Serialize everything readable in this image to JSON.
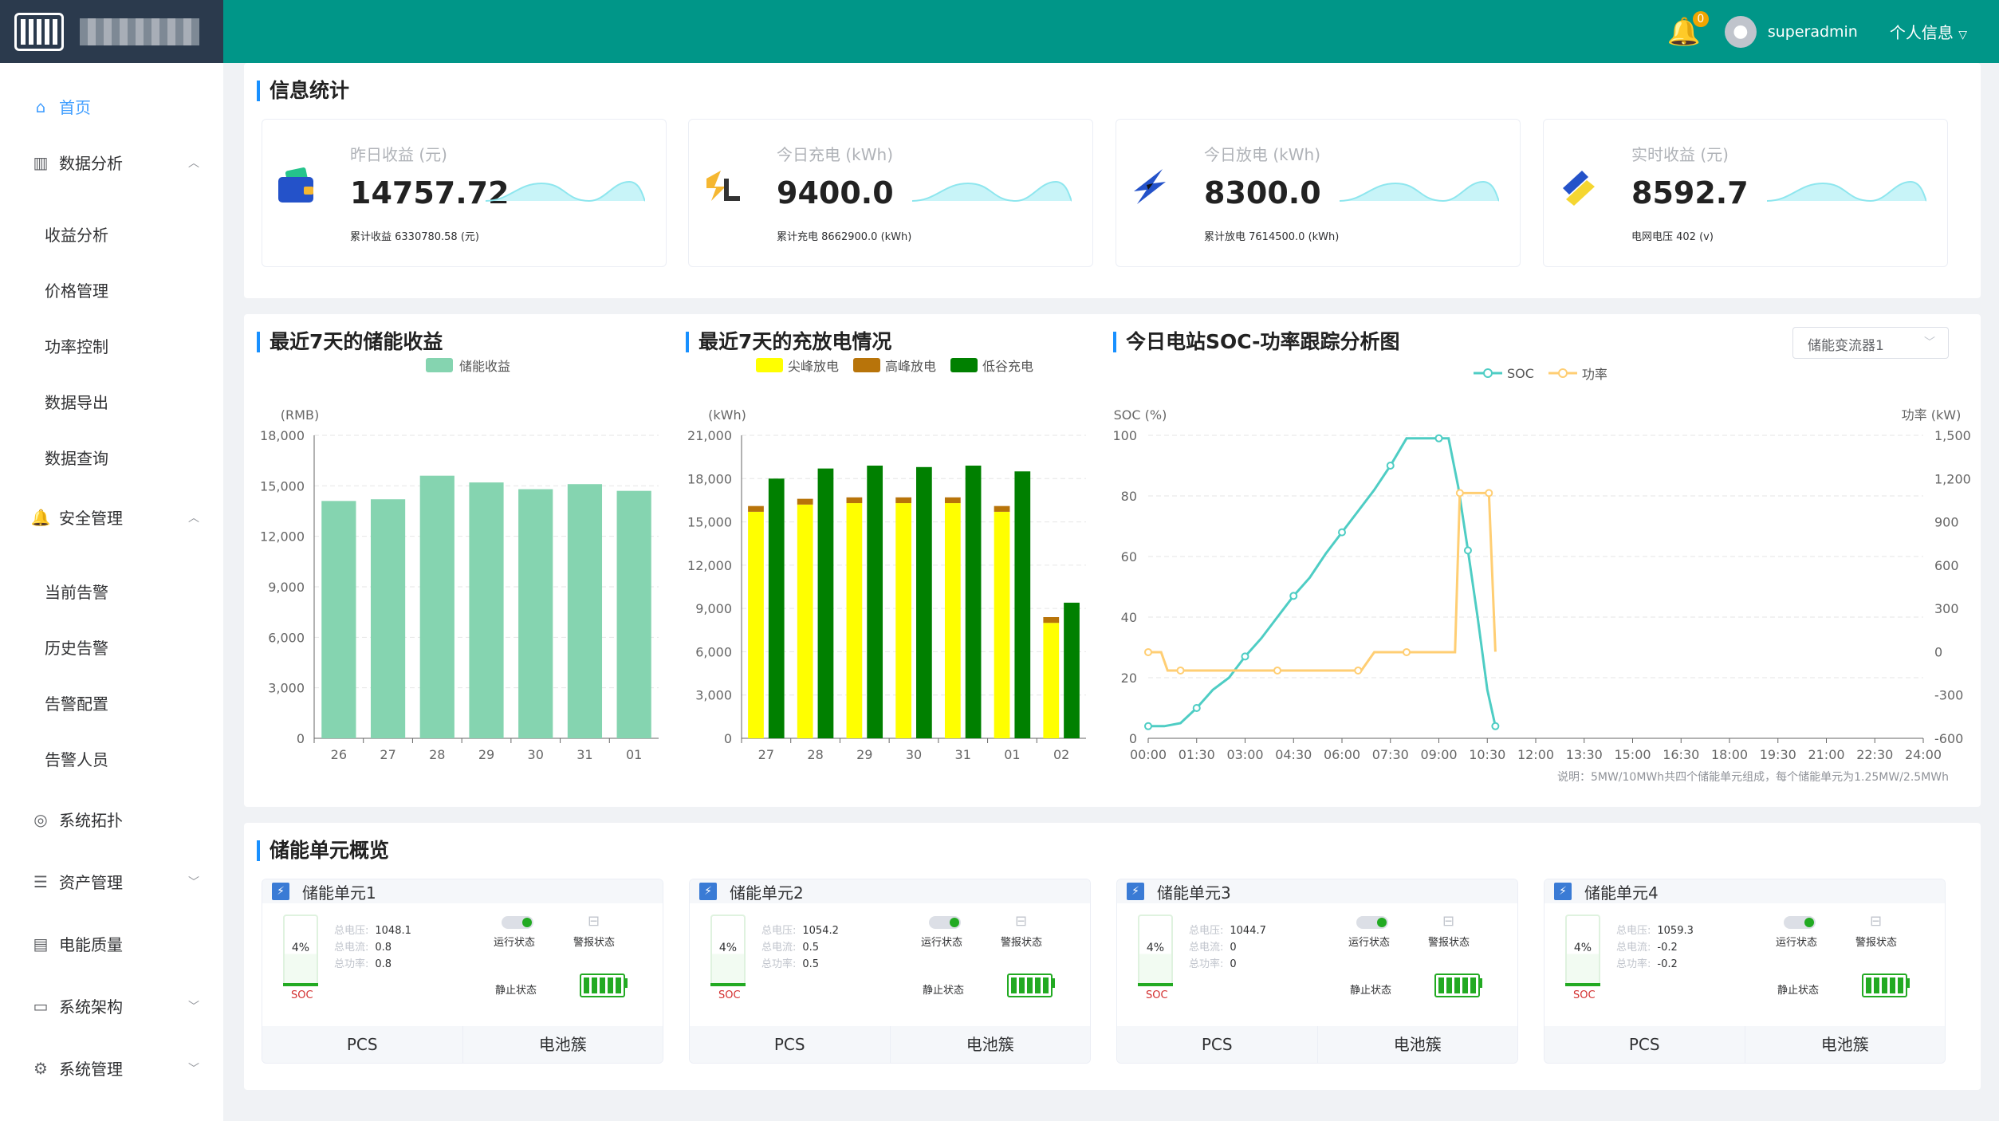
{
  "header": {
    "notification_count": "0",
    "username": "superadmin",
    "user_menu": "个人信息"
  },
  "sidebar": {
    "home": "首页",
    "data_analysis": "数据分析",
    "data_analysis_items": [
      "收益分析",
      "价格管理",
      "功率控制",
      "数据导出",
      "数据查询"
    ],
    "safety": "安全管理",
    "safety_items": [
      "当前告警",
      "历史告警",
      "告警配置",
      "告警人员"
    ],
    "topology": "系统拓扑",
    "assets": "资产管理",
    "power_quality": "电能质量",
    "architecture": "系统架构",
    "system": "系统管理"
  },
  "stats": {
    "title": "信息统计",
    "cards": [
      {
        "label": "昨日收益 (元)",
        "value": "14757.72",
        "sub": "累计收益 6330780.58 (元)",
        "icon": "wallet-icon"
      },
      {
        "label": "今日充电 (kWh)",
        "value": "9400.0",
        "sub": "累计充电 8662900.0 (kWh)",
        "icon": "charge-icon"
      },
      {
        "label": "今日放电 (kWh)",
        "value": "8300.0",
        "sub": "累计放电 7614500.0 (kWh)",
        "icon": "discharge-icon"
      },
      {
        "label": "实时收益 (元)",
        "value": "8592.7",
        "sub": "电网电压 402 (v)",
        "icon": "realtime-icon"
      }
    ]
  },
  "charts": {
    "income_title": "最近7天的储能收益",
    "chargedis_title": "最近7天的充放电情况",
    "soc_title": "今日电站SOC-功率跟踪分析图",
    "soc_select": "储能变流器1",
    "note": "说明：5MW/10MWh共四个储能单元组成，每个储能单元为1.25MW/2.5MWh"
  },
  "chart_data": [
    {
      "type": "bar",
      "title": "最近7天的储能收益",
      "ylabel": "(RMB)",
      "categories": [
        "26",
        "27",
        "28",
        "29",
        "30",
        "31",
        "01"
      ],
      "series": [
        {
          "name": "储能收益",
          "values": [
            14100,
            14200,
            15600,
            15200,
            14800,
            15100,
            14700
          ]
        }
      ],
      "ylim": [
        0,
        18000
      ],
      "yticks": [
        0,
        3000,
        6000,
        9000,
        12000,
        15000,
        18000
      ],
      "colors": [
        "#85d4b0"
      ],
      "legend": "top-center"
    },
    {
      "type": "bar",
      "title": "最近7天的充放电情况",
      "ylabel": "(kWh)",
      "categories": [
        "27",
        "28",
        "29",
        "30",
        "31",
        "01",
        "02"
      ],
      "series": [
        {
          "name": "尖峰放电",
          "values": [
            15700,
            16200,
            16300,
            16300,
            16300,
            15700,
            8000
          ]
        },
        {
          "name": "高峰放电",
          "values": [
            400,
            400,
            400,
            400,
            400,
            400,
            400
          ]
        },
        {
          "name": "低谷充电",
          "values": [
            18000,
            18700,
            18900,
            18800,
            18900,
            18500,
            9400
          ]
        }
      ],
      "ylim": [
        0,
        21000
      ],
      "yticks": [
        0,
        3000,
        6000,
        9000,
        12000,
        15000,
        18000,
        21000
      ],
      "colors": [
        "#ffff00",
        "#b8740a",
        "#008000"
      ],
      "legend": "top-center"
    },
    {
      "type": "line",
      "title": "今日电站SOC-功率跟踪分析图",
      "ylabel": "SOC (%)",
      "y2label": "功率 (kW)",
      "x_ticks": [
        "00:00",
        "01:30",
        "03:00",
        "04:30",
        "06:00",
        "07:30",
        "09:00",
        "10:30",
        "12:00",
        "13:30",
        "15:00",
        "16:30",
        "18:00",
        "19:30",
        "21:00",
        "22:30",
        "24:00"
      ],
      "ylim": [
        0,
        100
      ],
      "yticks": [
        0,
        20,
        40,
        60,
        80,
        100
      ],
      "y2lim": [
        -600,
        1500
      ],
      "y2ticks": [
        -600,
        -300,
        0,
        300,
        600,
        900,
        1200,
        1500
      ],
      "legend": "top-center",
      "series": [
        {
          "name": "SOC",
          "axis": "left",
          "color": "#4ecdc4",
          "x": [
            0.0,
            0.5,
            1.0,
            1.5,
            2.0,
            2.5,
            3.0,
            3.5,
            4.0,
            4.5,
            5.0,
            5.5,
            6.0,
            6.5,
            7.0,
            7.5,
            8.0,
            8.5,
            9.0,
            9.3,
            9.6,
            9.9,
            10.2,
            10.5,
            10.75
          ],
          "y": [
            4,
            4,
            5,
            10,
            16,
            20,
            27,
            33,
            40,
            47,
            53,
            61,
            68,
            75,
            82,
            90,
            99,
            99,
            99,
            99,
            83,
            62,
            40,
            16,
            4
          ]
        },
        {
          "name": "功率",
          "axis": "right",
          "color": "#ffce73",
          "x": [
            0.0,
            0.4,
            0.6,
            1.0,
            2.0,
            3.0,
            4.0,
            5.0,
            5.5,
            6.5,
            6.6,
            7.0,
            8.0,
            9.0,
            9.5,
            9.65,
            10.0,
            10.5,
            10.55,
            10.75
          ],
          "y": [
            -3,
            -3,
            -130,
            -130,
            -130,
            -130,
            -130,
            -130,
            -130,
            -130,
            -130,
            -3,
            -3,
            -3,
            -3,
            1100,
            1100,
            1100,
            1100,
            0
          ]
        }
      ]
    }
  ],
  "units": {
    "title": "储能单元概览",
    "labels": {
      "voltage": "总电压:",
      "current": "总电流:",
      "power": "总功率:",
      "run": "运行状态",
      "alarm": "警报状态",
      "still": "静止状态",
      "soc": "SOC",
      "pcs": "PCS",
      "cluster": "电池簇"
    },
    "items": [
      {
        "name": "储能单元1",
        "soc": "4%",
        "voltage": "1048.1",
        "current": "0.8",
        "power": "0.8"
      },
      {
        "name": "储能单元2",
        "soc": "4%",
        "voltage": "1054.2",
        "current": "0.5",
        "power": "0.5"
      },
      {
        "name": "储能单元3",
        "soc": "4%",
        "voltage": "1044.7",
        "current": "0",
        "power": "0"
      },
      {
        "name": "储能单元4",
        "soc": "4%",
        "voltage": "1059.3",
        "current": "-0.2",
        "power": "-0.2"
      }
    ]
  }
}
